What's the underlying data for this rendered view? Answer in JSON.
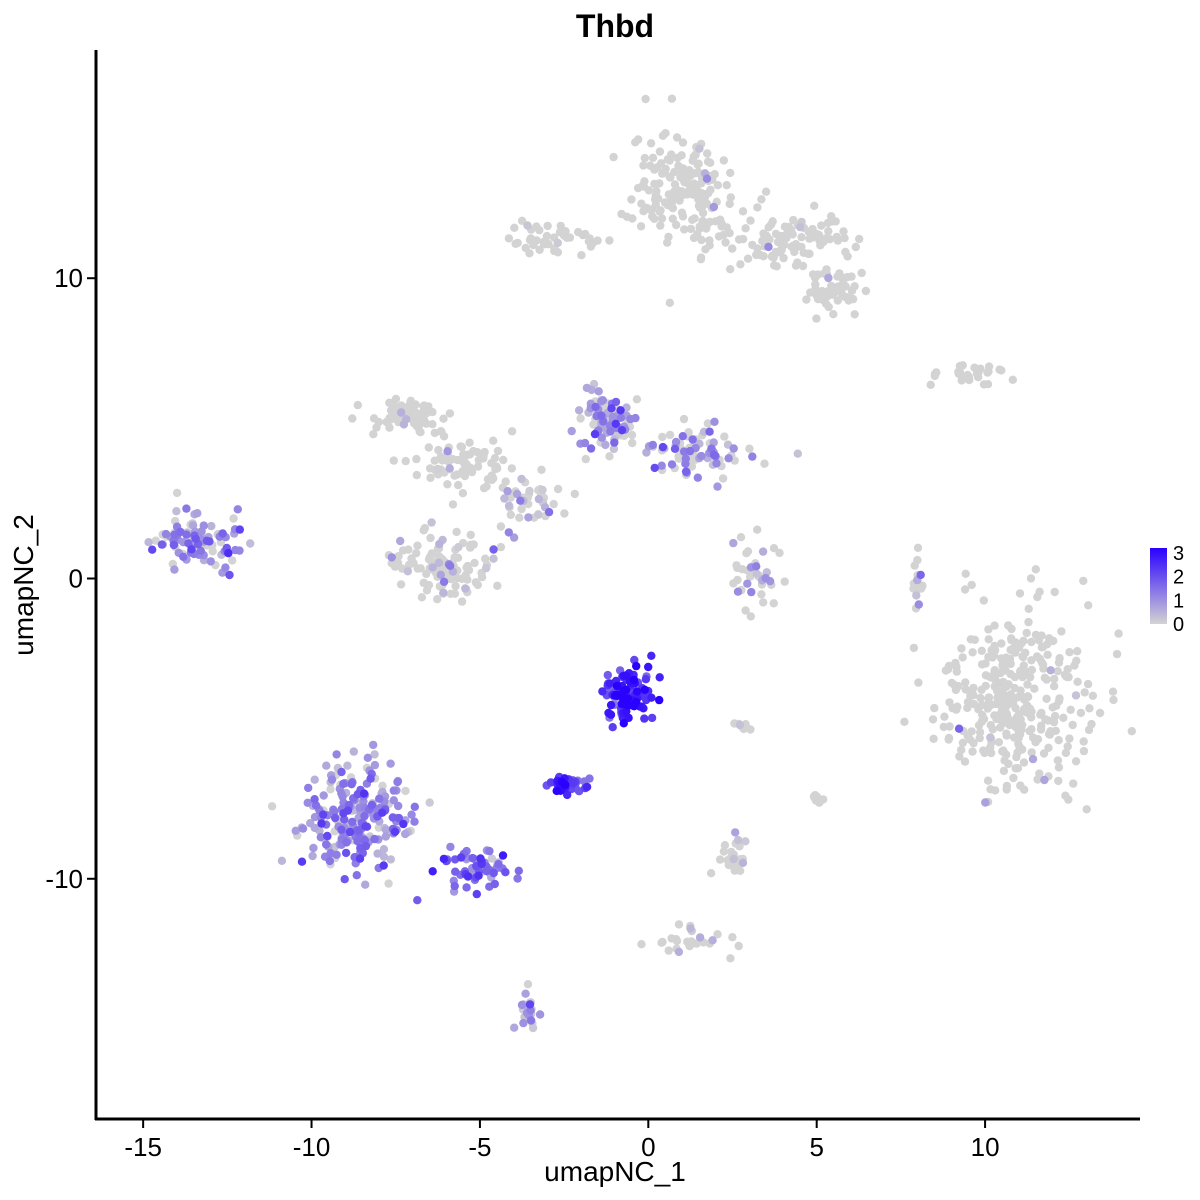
{
  "chart_data": {
    "type": "scatter",
    "title": "Thbd",
    "xlabel": "umapNC_1",
    "ylabel": "umapNC_2",
    "xlim": [
      -16.4,
      14.6
    ],
    "ylim": [
      -18.0,
      17.6
    ],
    "x_ticks": [
      -15,
      -10,
      -5,
      0,
      5,
      10
    ],
    "x_tick_labels": [
      "-15",
      "-10",
      "-5",
      "0",
      "5",
      "10"
    ],
    "y_ticks": [
      10,
      0,
      -10
    ],
    "y_tick_labels": [
      "10",
      "0",
      "-10"
    ],
    "grid": false,
    "color_scale": {
      "low": "#d3d3d3",
      "high": "#2a00ff",
      "min": 0,
      "max": 3.2,
      "legend_ticks": [
        3,
        2,
        1,
        0
      ],
      "legend_tick_labels": [
        "3",
        "2",
        "1",
        "0"
      ],
      "legend_position": "right"
    },
    "clusters": [
      {
        "center": [
          11.0,
          -4.0
        ],
        "spread": [
          2.2,
          2.7
        ],
        "n": 340,
        "mean_expr": 0.02
      },
      {
        "center": [
          1.0,
          13.0
        ],
        "spread": [
          1.3,
          1.8
        ],
        "n": 170,
        "mean_expr": 0.02
      },
      {
        "center": [
          4.0,
          11.2
        ],
        "spread": [
          1.8,
          0.9
        ],
        "n": 110,
        "mean_expr": 0.03
      },
      {
        "center": [
          5.6,
          9.6
        ],
        "spread": [
          0.8,
          0.8
        ],
        "n": 55,
        "mean_expr": 0.03
      },
      {
        "center": [
          -2.6,
          11.3
        ],
        "spread": [
          1.5,
          0.5
        ],
        "n": 45,
        "mean_expr": 0.04
      },
      {
        "center": [
          -7.2,
          5.4
        ],
        "spread": [
          1.1,
          0.6
        ],
        "n": 70,
        "mean_expr": 0.05
      },
      {
        "center": [
          -5.5,
          4.0
        ],
        "spread": [
          1.4,
          1.0
        ],
        "n": 80,
        "mean_expr": 0.1
      },
      {
        "center": [
          -6.0,
          0.5
        ],
        "spread": [
          1.3,
          1.0
        ],
        "n": 110,
        "mean_expr": 0.35
      },
      {
        "center": [
          -1.3,
          5.3
        ],
        "spread": [
          0.9,
          0.9
        ],
        "n": 90,
        "mean_expr": 0.9
      },
      {
        "center": [
          1.5,
          4.2
        ],
        "spread": [
          1.4,
          0.7
        ],
        "n": 90,
        "mean_expr": 0.8
      },
      {
        "center": [
          -3.5,
          2.7
        ],
        "spread": [
          1.0,
          0.8
        ],
        "n": 45,
        "mean_expr": 0.4
      },
      {
        "center": [
          -13.4,
          1.2
        ],
        "spread": [
          1.2,
          0.8
        ],
        "n": 100,
        "mean_expr": 1.0
      },
      {
        "center": [
          3.2,
          0.2
        ],
        "spread": [
          0.7,
          0.9
        ],
        "n": 40,
        "mean_expr": 0.6
      },
      {
        "center": [
          9.5,
          6.8
        ],
        "spread": [
          1.0,
          0.3
        ],
        "n": 30,
        "mean_expr": 0.1
      },
      {
        "center": [
          -0.6,
          -3.8
        ],
        "spread": [
          0.7,
          0.8
        ],
        "n": 110,
        "mean_expr": 2.6
      },
      {
        "center": [
          -2.4,
          -6.9
        ],
        "spread": [
          0.5,
          0.3
        ],
        "n": 40,
        "mean_expr": 2.3
      },
      {
        "center": [
          -8.7,
          -8.0
        ],
        "spread": [
          1.4,
          1.6
        ],
        "n": 240,
        "mean_expr": 1.1
      },
      {
        "center": [
          -5.0,
          -9.6
        ],
        "spread": [
          1.0,
          0.6
        ],
        "n": 60,
        "mean_expr": 1.4
      },
      {
        "center": [
          2.5,
          -9.3
        ],
        "spread": [
          0.5,
          0.6
        ],
        "n": 30,
        "mean_expr": 0.5
      },
      {
        "center": [
          1.2,
          -12.0
        ],
        "spread": [
          1.1,
          0.6
        ],
        "n": 25,
        "mean_expr": 0.3
      },
      {
        "center": [
          -3.6,
          -14.5
        ],
        "spread": [
          0.3,
          0.7
        ],
        "n": 22,
        "mean_expr": 0.8
      },
      {
        "center": [
          8.0,
          -0.2
        ],
        "spread": [
          0.2,
          1.2
        ],
        "n": 15,
        "mean_expr": 0.5
      },
      {
        "center": [
          5.0,
          -7.3
        ],
        "spread": [
          0.2,
          0.2
        ],
        "n": 8,
        "mean_expr": 0.1
      },
      {
        "center": [
          2.8,
          -4.9
        ],
        "spread": [
          0.3,
          0.1
        ],
        "n": 8,
        "mean_expr": 0.8
      }
    ]
  }
}
